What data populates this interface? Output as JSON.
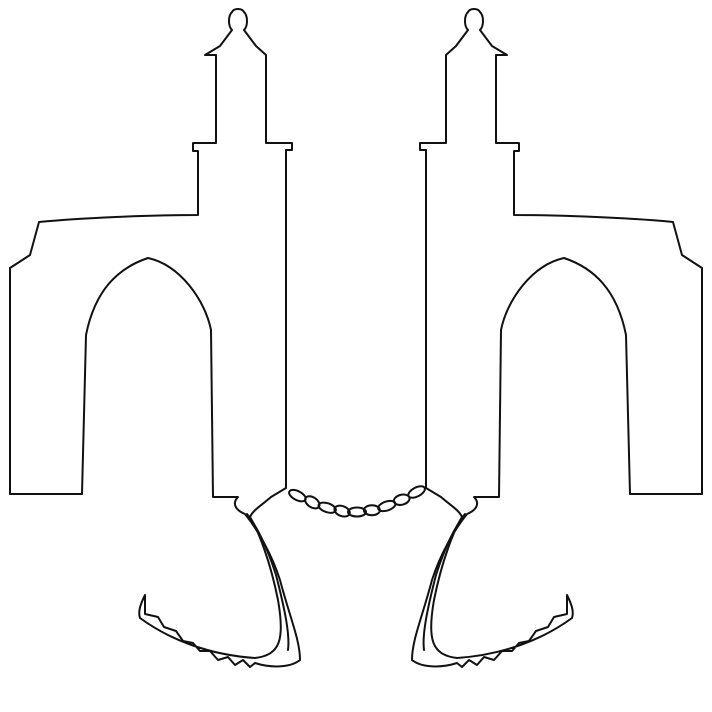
{
  "illustration": {
    "subject": "two-gate-towers-joined-by-handcuff-chain",
    "colors": {
      "background": "#ffffff",
      "ink": "#111111"
    },
    "parts": [
      "left-gate-icon",
      "right-gate-icon",
      "left-cuff-icon",
      "right-cuff-icon",
      "chain-icon"
    ]
  }
}
